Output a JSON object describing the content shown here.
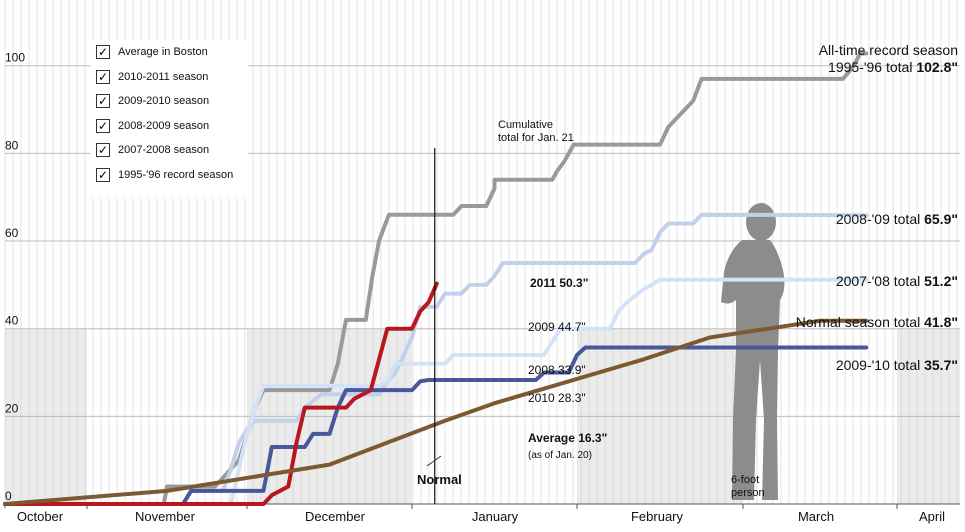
{
  "legend": {
    "items": [
      {
        "label": "Average in Boston",
        "checked": true
      },
      {
        "label": "2010-2011 season",
        "checked": true
      },
      {
        "label": "2009-2010 season",
        "checked": true
      },
      {
        "label": "2008-2009 season",
        "checked": true
      },
      {
        "label": "2007-2008 season",
        "checked": true
      },
      {
        "label": "1995-'96 record season",
        "checked": true
      }
    ]
  },
  "chart_data": {
    "type": "line",
    "x_categories": [
      "October",
      "November",
      "December",
      "January",
      "February",
      "March",
      "April"
    ],
    "y_ticks": [
      0,
      20,
      40,
      60,
      80,
      100
    ],
    "ylim": [
      0,
      115
    ],
    "grid": true,
    "annotations": {
      "cumulative_line1": "Cumulative",
      "cumulative_line2": "total for Jan. 21",
      "record_line1": "All-time record season",
      "record_line2_prefix": "1995-'96 total ",
      "record_value": "102.8\"",
      "s0809_prefix": "2008-'09 total ",
      "s0809_value": "65.9\"",
      "s0708_prefix": "2007-'08 total ",
      "s0708_value": "51.2\"",
      "normal_prefix": "Normal season total ",
      "normal_value": "41.8\"",
      "s0910_prefix": "2009-'10 total ",
      "s0910_value": "35.7\"",
      "now_2011": "2011 50.3\"",
      "now_2009": "2009 44.7\"",
      "now_2008": "2008 33.9\"",
      "now_2010": "2010 28.3\"",
      "avg_label": "Average 16.3\"",
      "avg_sub": "(as of Jan. 20)",
      "normal_label": "Normal",
      "person_line1": "6-foot",
      "person_line2": "person"
    },
    "series": [
      {
        "name": "1995-'96 record season",
        "color": "#9a9a9a",
        "points": [
          [
            0,
            0
          ],
          [
            1.48,
            0
          ],
          [
            1.5,
            4
          ],
          [
            1.8,
            4
          ],
          [
            1.85,
            6
          ],
          [
            1.95,
            10
          ],
          [
            2,
            16
          ],
          [
            2.05,
            22
          ],
          [
            2.1,
            26
          ],
          [
            2.5,
            26
          ],
          [
            2.55,
            32
          ],
          [
            2.6,
            42
          ],
          [
            2.72,
            42
          ],
          [
            2.76,
            52
          ],
          [
            2.8,
            60
          ],
          [
            2.86,
            66
          ],
          [
            3.25,
            66
          ],
          [
            3.3,
            68
          ],
          [
            3.45,
            68
          ],
          [
            3.5,
            72
          ],
          [
            3.5,
            74
          ],
          [
            3.85,
            74
          ],
          [
            3.88,
            76
          ],
          [
            3.92,
            78
          ],
          [
            3.98,
            82
          ],
          [
            4.5,
            82
          ],
          [
            4.55,
            86
          ],
          [
            4.6,
            88
          ],
          [
            4.7,
            92
          ],
          [
            4.75,
            97
          ],
          [
            5.65,
            97
          ],
          [
            5.72,
            100
          ],
          [
            5.76,
            102.8
          ],
          [
            5.8,
            102.8
          ]
        ]
      },
      {
        "name": "2008-2009 season",
        "color": "#c2d0ea",
        "points": [
          [
            0,
            0
          ],
          [
            1.6,
            0
          ],
          [
            1.65,
            3
          ],
          [
            1.85,
            3
          ],
          [
            1.9,
            8
          ],
          [
            1.95,
            14
          ],
          [
            2,
            17
          ],
          [
            2.05,
            19
          ],
          [
            2.3,
            19
          ],
          [
            2.35,
            22
          ],
          [
            2.45,
            25
          ],
          [
            2.7,
            25
          ],
          [
            2.8,
            25
          ],
          [
            2.85,
            28
          ],
          [
            2.9,
            30
          ],
          [
            3.0,
            38
          ],
          [
            3.05,
            45
          ],
          [
            3.15,
            45
          ],
          [
            3.2,
            48
          ],
          [
            3.3,
            48
          ],
          [
            3.35,
            50
          ],
          [
            3.45,
            50
          ],
          [
            3.5,
            52
          ],
          [
            3.55,
            55
          ],
          [
            4.35,
            55
          ],
          [
            4.4,
            57
          ],
          [
            4.45,
            58
          ],
          [
            4.5,
            62
          ],
          [
            4.55,
            64
          ],
          [
            4.7,
            64
          ],
          [
            4.75,
            66
          ],
          [
            5.8,
            65.9
          ]
        ]
      },
      {
        "name": "2007-2008 season",
        "color": "#d4e2f8",
        "points": [
          [
            0,
            0
          ],
          [
            1.9,
            0
          ],
          [
            1.95,
            8
          ],
          [
            2,
            16
          ],
          [
            2.05,
            22
          ],
          [
            2.1,
            27
          ],
          [
            2.8,
            27
          ],
          [
            2.85,
            28
          ],
          [
            2.9,
            32
          ],
          [
            3.0,
            32
          ],
          [
            3.2,
            32
          ],
          [
            3.25,
            34
          ],
          [
            3.8,
            34
          ],
          [
            3.85,
            37
          ],
          [
            3.9,
            40
          ],
          [
            4.2,
            40
          ],
          [
            4.25,
            44
          ],
          [
            4.3,
            46
          ],
          [
            4.4,
            49
          ],
          [
            4.45,
            50
          ],
          [
            4.5,
            51.2
          ],
          [
            5.8,
            51.2
          ]
        ]
      },
      {
        "name": "2009-2010 season",
        "color": "#48589a",
        "points": [
          [
            0,
            0
          ],
          [
            1.6,
            0
          ],
          [
            1.65,
            3
          ],
          [
            2.1,
            3
          ],
          [
            2.15,
            13
          ],
          [
            2.35,
            13
          ],
          [
            2.4,
            16
          ],
          [
            2.5,
            16
          ],
          [
            2.55,
            22
          ],
          [
            2.6,
            26
          ],
          [
            2.95,
            26
          ],
          [
            3.0,
            26
          ],
          [
            3.05,
            28
          ],
          [
            3.1,
            28.3
          ],
          [
            3.75,
            28.3
          ],
          [
            3.8,
            30
          ],
          [
            3.95,
            30
          ],
          [
            4.0,
            34
          ],
          [
            4.05,
            35.7
          ],
          [
            5.8,
            35.7
          ]
        ]
      },
      {
        "name": "2010-2011 season",
        "color": "#b8171f",
        "points": [
          [
            0,
            0
          ],
          [
            2.1,
            0
          ],
          [
            2.15,
            2
          ],
          [
            2.25,
            4
          ],
          [
            2.3,
            14
          ],
          [
            2.35,
            22
          ],
          [
            2.6,
            22
          ],
          [
            2.65,
            24
          ],
          [
            2.75,
            26
          ],
          [
            2.85,
            40
          ],
          [
            3.0,
            40
          ],
          [
            3.05,
            44
          ],
          [
            3.1,
            46
          ],
          [
            3.15,
            50.3
          ]
        ]
      },
      {
        "name": "Average in Boston",
        "color": "#7b5a32",
        "points": [
          [
            0,
            0
          ],
          [
            1.5,
            3
          ],
          [
            2.5,
            9
          ],
          [
            3.2,
            19
          ],
          [
            3.5,
            23
          ],
          [
            4.4,
            33
          ],
          [
            4.8,
            38
          ],
          [
            5.5,
            41.8
          ],
          [
            5.8,
            41.8
          ]
        ]
      }
    ]
  }
}
